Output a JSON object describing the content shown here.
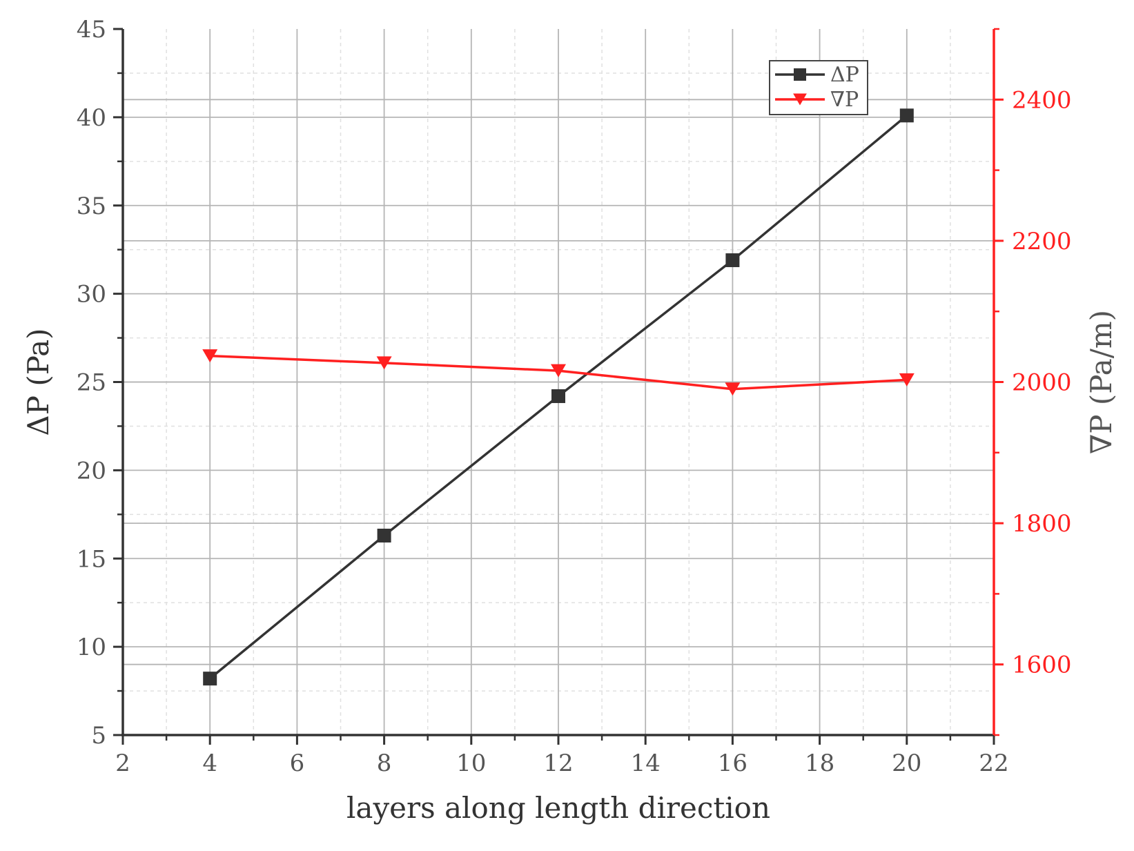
{
  "chart_data": {
    "type": "line",
    "xlabel": "layers along length direction",
    "ylabel_left": "ΔP  (Pa)",
    "ylabel_right": "∇P  (Pa/m)",
    "xlim": [
      2,
      22
    ],
    "x_ticks": [
      2,
      4,
      6,
      8,
      10,
      12,
      14,
      16,
      18,
      20,
      22
    ],
    "ylim_left": [
      5,
      45
    ],
    "y_ticks_left": [
      5,
      10,
      15,
      20,
      25,
      30,
      35,
      40,
      45
    ],
    "ylim_right": [
      1500,
      2500
    ],
    "y_ticks_right": [
      1600,
      1800,
      2000,
      2200,
      2400
    ],
    "grid": true,
    "legend_position": "top-right",
    "x": [
      4,
      8,
      12,
      16,
      20
    ],
    "series": [
      {
        "name": "ΔP",
        "axis": "left",
        "marker": "square",
        "color": "#333333",
        "values": [
          8.2,
          16.3,
          24.2,
          31.9,
          40.1
        ]
      },
      {
        "name": "∇P",
        "axis": "right",
        "marker": "triangle-down",
        "color": "#ff2020",
        "values": [
          2037,
          2027,
          2016,
          1990,
          2003
        ]
      }
    ],
    "colors": {
      "left_axis": "#333333",
      "right_axis": "#ff2020",
      "grid_major": "#b5b5b5",
      "grid_minor": "#e0e0e0"
    }
  }
}
